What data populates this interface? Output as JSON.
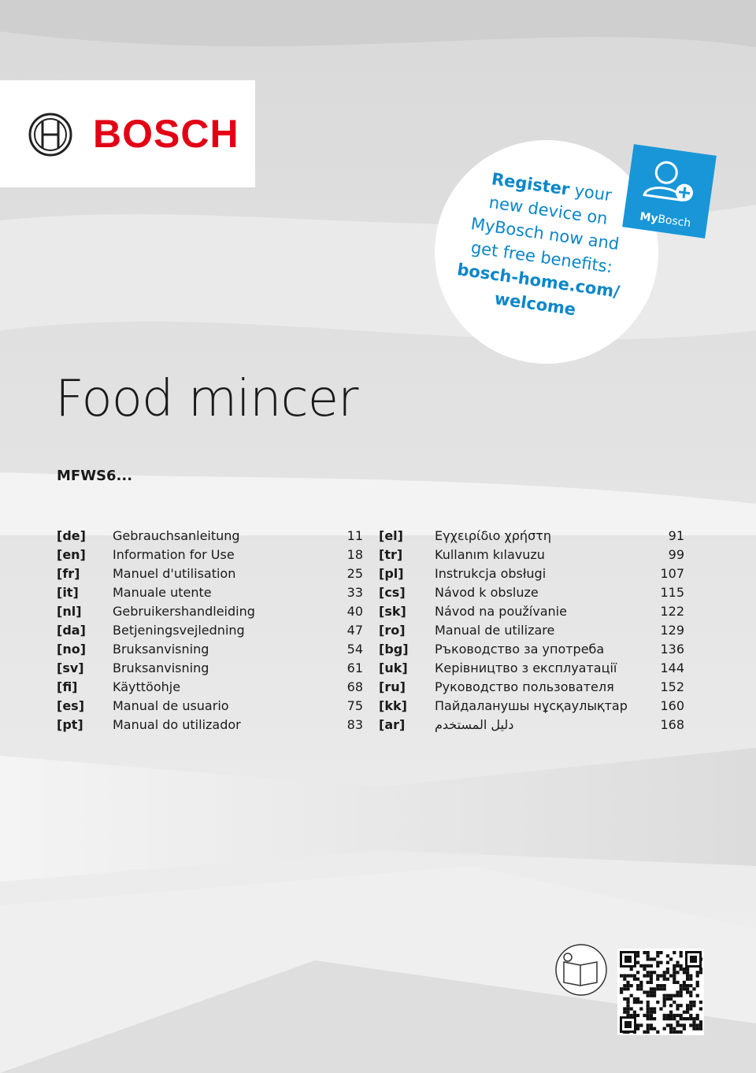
{
  "logo": {
    "brand": "BOSCH"
  },
  "promo": {
    "lines": [
      [
        {
          "text": "Register",
          "bold": true
        },
        {
          "text": " your",
          "bold": false
        }
      ],
      [
        {
          "text": "new device on",
          "bold": false
        }
      ],
      [
        {
          "text": "MyBosch now and",
          "bold": false
        }
      ],
      [
        {
          "text": "get free benefits:",
          "bold": false
        }
      ],
      [
        {
          "text": "bosch-home.com/",
          "bold": true
        }
      ],
      [
        {
          "text": "welcome",
          "bold": true
        }
      ]
    ],
    "badge": {
      "my": "My",
      "bosch": "Bosch"
    }
  },
  "title": "Food mincer",
  "model": "MFWS6...",
  "languages": {
    "columns": [
      [
        {
          "code": "[de]",
          "name": "Gebrauchsanleitung",
          "page": 11
        },
        {
          "code": "[en]",
          "name": "Information for Use",
          "page": 18
        },
        {
          "code": "[fr]",
          "name": "Manuel d'utilisation",
          "page": 25
        },
        {
          "code": "[it]",
          "name": "Manuale utente",
          "page": 33
        },
        {
          "code": "[nl]",
          "name": "Gebruikershandleiding",
          "page": 40
        },
        {
          "code": "[da]",
          "name": "Betjeningsvejledning",
          "page": 47
        },
        {
          "code": "[no]",
          "name": "Bruksanvisning",
          "page": 54
        },
        {
          "code": "[sv]",
          "name": "Bruksanvisning",
          "page": 61
        },
        {
          "code": "[fi]",
          "name": "Käyttöohje",
          "page": 68
        },
        {
          "code": "[es]",
          "name": "Manual de usuario",
          "page": 75
        },
        {
          "code": "[pt]",
          "name": "Manual do utilizador",
          "page": 83
        }
      ],
      [
        {
          "code": "[el]",
          "name": "Εγχειρίδιο χρήστη",
          "page": 91
        },
        {
          "code": "[tr]",
          "name": "Kullanım kılavuzu",
          "page": 99
        },
        {
          "code": "[pl]",
          "name": "Instrukcja obsługi",
          "page": 107
        },
        {
          "code": "[cs]",
          "name": "Návod k obsluze",
          "page": 115
        },
        {
          "code": "[sk]",
          "name": "Návod na používanie",
          "page": 122
        },
        {
          "code": "[ro]",
          "name": "Manual de utilizare",
          "page": 129
        },
        {
          "code": "[bg]",
          "name": "Ръководство за употреба",
          "page": 136
        },
        {
          "code": "[uk]",
          "name": "Керівництво з експлуатації",
          "page": 144
        },
        {
          "code": "[ru]",
          "name": "Руководство пользователя",
          "page": 152
        },
        {
          "code": "[kk]",
          "name": "Пайдаланушы нұсқаулықтар",
          "page": 160
        },
        {
          "code": "[ar]",
          "name": "دليل المستخدم",
          "page": 168
        }
      ]
    ]
  }
}
